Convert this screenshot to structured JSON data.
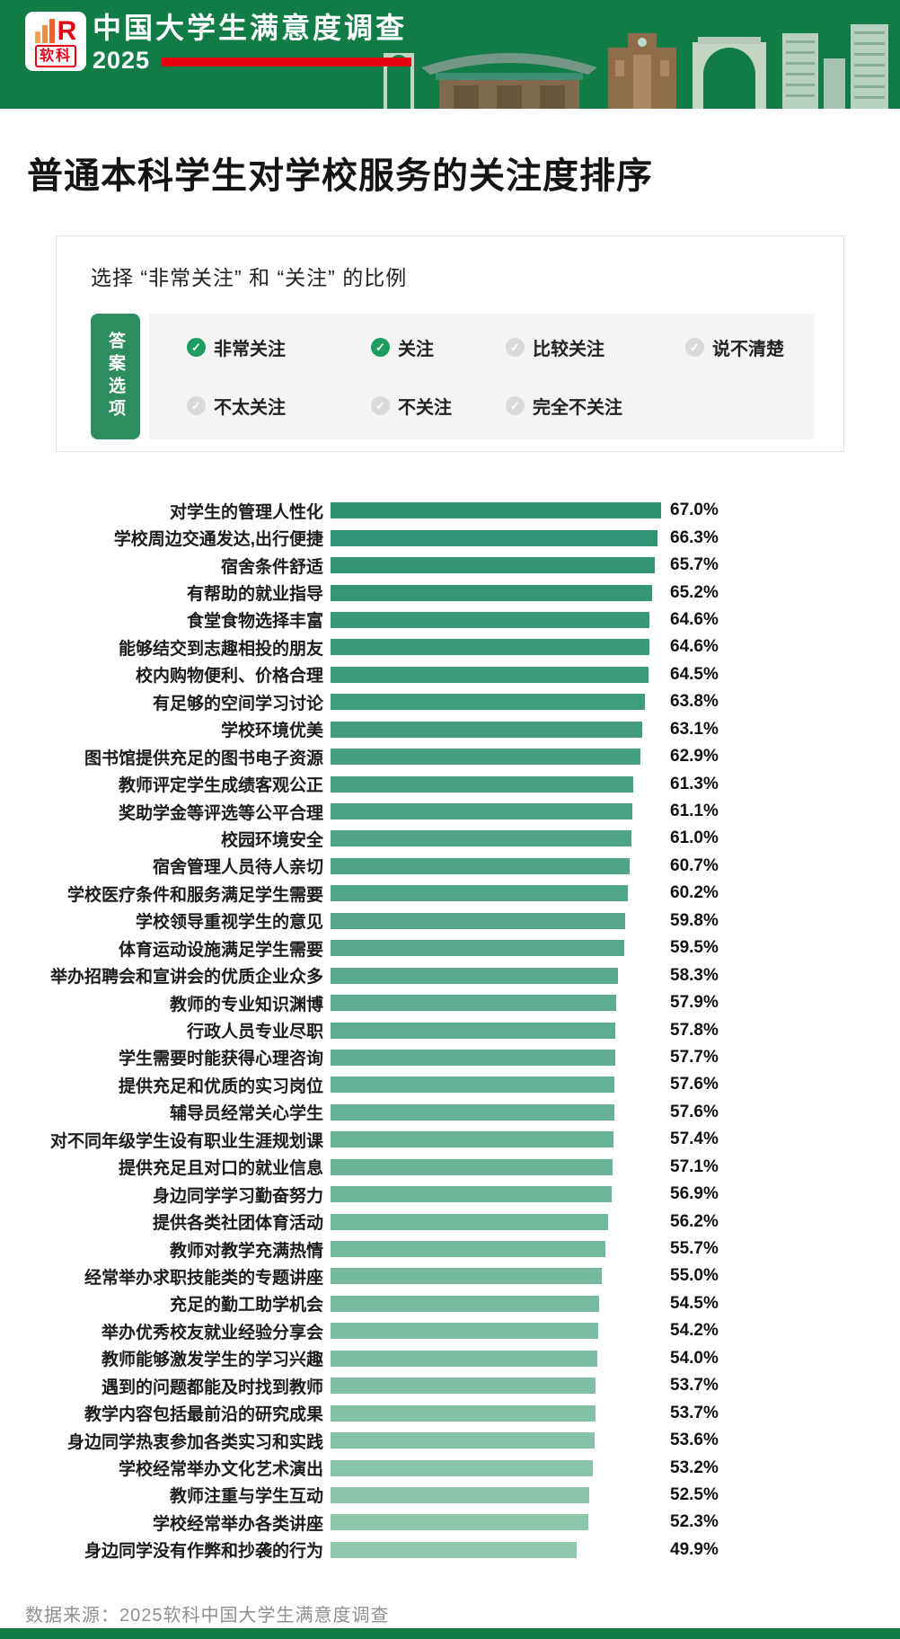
{
  "header": {
    "logo": {
      "brand": "软科",
      "glyph": "R"
    },
    "title": "中国大学生满意度调查",
    "year": "2025"
  },
  "page_title": "普通本科学生对学校服务的关注度排序",
  "filter_box": {
    "subtitle": "选择 “非常关注” 和 “关注” 的比例",
    "tab_label": "答案选项",
    "options": [
      {
        "label": "非常关注",
        "checked": true
      },
      {
        "label": "关注",
        "checked": true
      },
      {
        "label": "比较关注",
        "checked": false
      },
      {
        "label": "说不清楚",
        "checked": false
      },
      {
        "label": "不太关注",
        "checked": false
      },
      {
        "label": "不关注",
        "checked": false
      },
      {
        "label": "完全不关注",
        "checked": false
      }
    ]
  },
  "icons": {
    "check": "✓"
  },
  "colors": {
    "header_green": "#127C47",
    "accent_red": "#E60012",
    "tab_green": "#2E8D5E",
    "check_green": "#1D9E60",
    "check_gray": "#D9D9D9"
  },
  "chart_data": {
    "type": "bar",
    "orientation": "horizontal",
    "title": "普通本科学生对学校服务的关注度排序",
    "subtitle": "选择 “非常关注” 和 “关注” 的比例",
    "xlabel": "",
    "ylabel": "",
    "xlim": [
      0,
      67
    ],
    "grid": false,
    "value_labels": true,
    "value_suffix": "%",
    "bar_color_top": "#2E9273",
    "bar_color_bottom": "#8FC8AE",
    "categories": [
      "对学生的管理人性化",
      "学校周边交通发达,出行便捷",
      "宿舍条件舒适",
      "有帮助的就业指导",
      "食堂食物选择丰富",
      "能够结交到志趣相投的朋友",
      "校内购物便利、价格合理",
      "有足够的空间学习讨论",
      "学校环境优美",
      "图书馆提供充足的图书电子资源",
      "教师评定学生成绩客观公正",
      "奖助学金等评选等公平合理",
      "校园环境安全",
      "宿舍管理人员待人亲切",
      "学校医疗条件和服务满足学生需要",
      "学校领导重视学生的意见",
      "体育运动设施满足学生需要",
      "举办招聘会和宣讲会的优质企业众多",
      "教师的专业知识渊博",
      "行政人员专业尽职",
      "学生需要时能获得心理咨询",
      "提供充足和优质的实习岗位",
      "辅导员经常关心学生",
      "对不同年级学生设有职业生涯规划课",
      "提供充足且对口的就业信息",
      "身边同学学习勤奋努力",
      "提供各类社团体育活动",
      "教师对教学充满热情",
      "经常举办求职技能类的专题讲座",
      "充足的勤工助学机会",
      "举办优秀校友就业经验分享会",
      "教师能够激发学生的学习兴趣",
      "遇到的问题都能及时找到教师",
      "教学内容包括最前沿的研究成果",
      "身边同学热衷参加各类实习和实践",
      "学校经常举办文化艺术演出",
      "教师注重与学生互动",
      "学校经常举办各类讲座",
      "身边同学没有作弊和抄袭的行为"
    ],
    "values": [
      67.0,
      66.3,
      65.7,
      65.2,
      64.6,
      64.6,
      64.5,
      63.8,
      63.1,
      62.9,
      61.3,
      61.1,
      61.0,
      60.7,
      60.2,
      59.8,
      59.5,
      58.3,
      57.9,
      57.8,
      57.7,
      57.6,
      57.6,
      57.4,
      57.1,
      56.9,
      56.2,
      55.7,
      55.0,
      54.5,
      54.2,
      54.0,
      53.7,
      53.7,
      53.6,
      53.2,
      52.5,
      52.3,
      49.9
    ]
  },
  "footer": {
    "source": "数据来源：2025软科中国大学生满意度调查"
  }
}
